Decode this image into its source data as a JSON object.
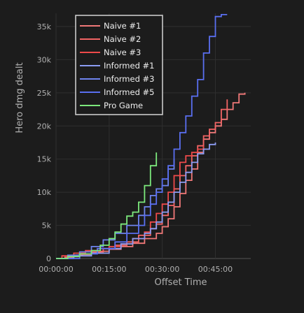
{
  "chart_data": {
    "type": "line",
    "line_shape": "step",
    "xlabel": "Offset Time",
    "ylabel": "Hero dmg dealt",
    "x_unit": "seconds",
    "xlim": [
      0,
      3300
    ],
    "ylim": [
      0,
      37000
    ],
    "x_ticks": [
      {
        "value": 0,
        "label": "00:00:00"
      },
      {
        "value": 900,
        "label": "00:15:00"
      },
      {
        "value": 1800,
        "label": "00:30:00"
      },
      {
        "value": 2700,
        "label": "00:45:00"
      }
    ],
    "y_ticks": [
      {
        "value": 0,
        "label": "0"
      },
      {
        "value": 5000,
        "label": "5k"
      },
      {
        "value": 10000,
        "label": "10k"
      },
      {
        "value": 15000,
        "label": "15k"
      },
      {
        "value": 20000,
        "label": "20k"
      },
      {
        "value": 25000,
        "label": "25k"
      },
      {
        "value": 30000,
        "label": "30k"
      },
      {
        "value": 35000,
        "label": "35k"
      }
    ],
    "grid": true,
    "legend_position": "top-left",
    "background": "#1c1c1c",
    "series": [
      {
        "name": "Naive #1",
        "color": "#f07878",
        "x": [
          0,
          150,
          300,
          450,
          600,
          750,
          900,
          1100,
          1300,
          1500,
          1700,
          1800,
          1900,
          2000,
          2100,
          2200,
          2300,
          2400,
          2500,
          2600,
          2700,
          2800,
          2900,
          3000,
          3100,
          3200
        ],
        "y": [
          0,
          200,
          500,
          700,
          900,
          1100,
          1400,
          1800,
          2300,
          3000,
          3800,
          4800,
          6000,
          7800,
          9800,
          11800,
          13500,
          16000,
          18000,
          19000,
          20000,
          21000,
          22500,
          23500,
          24800,
          25000
        ]
      },
      {
        "name": "Naive #2",
        "color": "#f26464",
        "x": [
          0,
          200,
          400,
          600,
          800,
          1000,
          1200,
          1400,
          1600,
          1700,
          1800,
          1900,
          2000,
          2100,
          2200,
          2300,
          2400,
          2500,
          2600,
          2700,
          2800,
          2900
        ],
        "y": [
          0,
          300,
          600,
          1000,
          1500,
          2000,
          2500,
          3500,
          4500,
          5200,
          6500,
          8000,
          10500,
          12500,
          14000,
          15500,
          17000,
          18500,
          19500,
          20500,
          22500,
          24000
        ]
      },
      {
        "name": "Naive #3",
        "color": "#ee4a4a",
        "x": [
          0,
          100,
          300,
          500,
          700,
          900,
          1100,
          1300,
          1500,
          1600,
          1700,
          1800,
          1900,
          2000,
          2100,
          2200,
          2300,
          2400,
          2500
        ],
        "y": [
          0,
          400,
          800,
          1200,
          1500,
          1800,
          2200,
          3000,
          4000,
          5500,
          6800,
          8200,
          10000,
          12500,
          14500,
          15500,
          16000,
          16500,
          17000
        ]
      },
      {
        "name": "Informed #1",
        "color": "#8c9cf2",
        "x": [
          0,
          300,
          600,
          900,
          1100,
          1300,
          1500,
          1600,
          1700,
          1800,
          1900,
          2000,
          2100,
          2200,
          2300,
          2400,
          2500,
          2600,
          2700
        ],
        "y": [
          0,
          400,
          800,
          1500,
          2200,
          3000,
          3800,
          4500,
          5500,
          7000,
          8500,
          10000,
          11500,
          13000,
          14500,
          15800,
          16500,
          17200,
          17500
        ]
      },
      {
        "name": "Informed #3",
        "color": "#6f84ee",
        "x": [
          0,
          200,
          400,
          600,
          800,
          1000,
          1200,
          1400,
          1500,
          1600,
          1700,
          1800,
          1900,
          2000
        ],
        "y": [
          0,
          500,
          1000,
          1800,
          2800,
          3800,
          5000,
          6500,
          7800,
          9500,
          10500,
          11000,
          13500,
          15000
        ]
      },
      {
        "name": "Informed #5",
        "color": "#5a6ff0",
        "x": [
          0,
          400,
          700,
          1000,
          1200,
          1400,
          1500,
          1600,
          1700,
          1800,
          1900,
          2000,
          2100,
          2200,
          2300,
          2400,
          2500,
          2600,
          2700,
          2800,
          2900
        ],
        "y": [
          0,
          700,
          1500,
          2500,
          3800,
          5000,
          6500,
          8200,
          10000,
          12000,
          14000,
          16500,
          19000,
          21500,
          24500,
          27000,
          31000,
          33500,
          36500,
          36800,
          36800
        ]
      },
      {
        "name": "Pro Game",
        "color": "#7ce87c",
        "x": [
          0,
          200,
          400,
          600,
          750,
          900,
          1000,
          1100,
          1200,
          1300,
          1400,
          1500,
          1600,
          1700
        ],
        "y": [
          0,
          300,
          700,
          1200,
          2000,
          3000,
          4000,
          5200,
          6400,
          7000,
          8500,
          11000,
          14000,
          16000
        ]
      }
    ]
  }
}
